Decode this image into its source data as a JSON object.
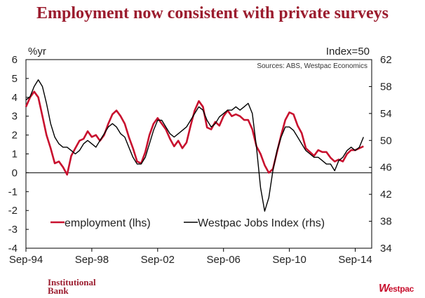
{
  "header": {
    "title": "Employment now consistent with private surveys"
  },
  "footer": {
    "brand_line1": "Institutional",
    "brand_line2": "Bank",
    "logo_text": "estpac",
    "logo_mark": "W"
  },
  "colors": {
    "title": "#9b1c2e",
    "employment": "#c8102e",
    "jobs_index": "#000000",
    "axis": "#000000"
  },
  "chart_data": {
    "type": "line",
    "left_unit": "%yr",
    "right_unit": "Index=50",
    "source": "Sources: ABS, Westpac Economics",
    "x_ticks": [
      "Sep-94",
      "Sep-98",
      "Sep-02",
      "Sep-06",
      "Sep-10",
      "Sep-14"
    ],
    "x_range": [
      "Sep-94",
      "Sep-15"
    ],
    "y_left": {
      "range": [
        -4,
        6
      ],
      "ticks": [
        "6",
        "5",
        "4",
        "3",
        "2",
        "1",
        "0",
        "-1",
        "-2",
        "-3",
        "-4"
      ]
    },
    "y_right": {
      "range": [
        34,
        62
      ],
      "ticks": [
        "62",
        "58",
        "54",
        "50",
        "46",
        "42",
        "38",
        "34"
      ]
    },
    "series": [
      {
        "name": "employment (lhs)",
        "axis": "left",
        "color": "#c8102e",
        "points": [
          [
            "Sep-94",
            3.5
          ],
          [
            "Dec-94",
            4.0
          ],
          [
            "Mar-95",
            4.3
          ],
          [
            "Jun-95",
            4.0
          ],
          [
            "Sep-95",
            3.0
          ],
          [
            "Dec-95",
            2.0
          ],
          [
            "Mar-96",
            1.3
          ],
          [
            "Jun-96",
            0.5
          ],
          [
            "Sep-96",
            0.6
          ],
          [
            "Dec-96",
            0.3
          ],
          [
            "Mar-97",
            -0.1
          ],
          [
            "Jun-97",
            0.9
          ],
          [
            "Sep-97",
            1.3
          ],
          [
            "Dec-97",
            1.7
          ],
          [
            "Mar-98",
            1.8
          ],
          [
            "Jun-98",
            2.2
          ],
          [
            "Sep-98",
            1.9
          ],
          [
            "Dec-98",
            2.0
          ],
          [
            "Mar-99",
            1.7
          ],
          [
            "Jun-99",
            2.0
          ],
          [
            "Sep-99",
            2.6
          ],
          [
            "Dec-99",
            3.1
          ],
          [
            "Mar-00",
            3.3
          ],
          [
            "Jun-00",
            3.0
          ],
          [
            "Sep-00",
            2.6
          ],
          [
            "Dec-00",
            1.9
          ],
          [
            "Mar-01",
            1.3
          ],
          [
            "Jun-01",
            0.6
          ],
          [
            "Sep-01",
            0.5
          ],
          [
            "Dec-01",
            1.1
          ],
          [
            "Mar-02",
            2.0
          ],
          [
            "Jun-02",
            2.6
          ],
          [
            "Sep-02",
            2.9
          ],
          [
            "Dec-02",
            2.6
          ],
          [
            "Mar-03",
            2.3
          ],
          [
            "Jun-03",
            1.8
          ],
          [
            "Sep-03",
            1.4
          ],
          [
            "Dec-03",
            1.7
          ],
          [
            "Mar-04",
            1.3
          ],
          [
            "Jun-04",
            1.6
          ],
          [
            "Sep-04",
            2.5
          ],
          [
            "Dec-04",
            3.3
          ],
          [
            "Mar-05",
            3.8
          ],
          [
            "Jun-05",
            3.5
          ],
          [
            "Sep-05",
            2.4
          ],
          [
            "Dec-05",
            2.3
          ],
          [
            "Mar-06",
            2.7
          ],
          [
            "Jun-06",
            2.5
          ],
          [
            "Sep-06",
            3.0
          ],
          [
            "Dec-06",
            3.3
          ],
          [
            "Mar-07",
            3.0
          ],
          [
            "Jun-07",
            3.1
          ],
          [
            "Sep-07",
            3.0
          ],
          [
            "Dec-07",
            2.8
          ],
          [
            "Mar-08",
            2.8
          ],
          [
            "Jun-08",
            2.3
          ],
          [
            "Sep-08",
            1.4
          ],
          [
            "Dec-08",
            1.0
          ],
          [
            "Mar-09",
            0.4
          ],
          [
            "Jun-09",
            0.0
          ],
          [
            "Sep-09",
            0.2
          ],
          [
            "Dec-09",
            1.1
          ],
          [
            "Mar-10",
            2.0
          ],
          [
            "Jun-10",
            2.8
          ],
          [
            "Sep-10",
            3.2
          ],
          [
            "Dec-10",
            3.1
          ],
          [
            "Mar-11",
            2.5
          ],
          [
            "Jun-11",
            2.1
          ],
          [
            "Sep-11",
            1.3
          ],
          [
            "Dec-11",
            1.1
          ],
          [
            "Mar-12",
            0.9
          ],
          [
            "Jun-12",
            1.2
          ],
          [
            "Sep-12",
            1.1
          ],
          [
            "Dec-12",
            1.1
          ],
          [
            "Mar-13",
            0.8
          ],
          [
            "Jun-13",
            0.6
          ],
          [
            "Sep-13",
            0.7
          ],
          [
            "Dec-13",
            0.6
          ],
          [
            "Mar-14",
            1.0
          ],
          [
            "Jun-14",
            1.2
          ],
          [
            "Sep-14",
            1.2
          ],
          [
            "Dec-14",
            1.3
          ],
          [
            "Mar-15",
            1.4
          ]
        ]
      },
      {
        "name": "Westpac Jobs Index  (rhs)",
        "axis": "right",
        "color": "#000000",
        "points": [
          [
            "Sep-94",
            56.0
          ],
          [
            "Dec-94",
            56.5
          ],
          [
            "Mar-95",
            58.0
          ],
          [
            "Jun-95",
            59.0
          ],
          [
            "Sep-95",
            58.0
          ],
          [
            "Dec-95",
            55.5
          ],
          [
            "Mar-96",
            52.5
          ],
          [
            "Jun-96",
            50.5
          ],
          [
            "Sep-96",
            49.5
          ],
          [
            "Dec-96",
            49.0
          ],
          [
            "Mar-97",
            49.0
          ],
          [
            "Jun-97",
            48.5
          ],
          [
            "Sep-97",
            48.0
          ],
          [
            "Dec-97",
            48.5
          ],
          [
            "Mar-98",
            49.5
          ],
          [
            "Jun-98",
            50.0
          ],
          [
            "Sep-98",
            49.5
          ],
          [
            "Dec-98",
            49.0
          ],
          [
            "Mar-99",
            50.0
          ],
          [
            "Jun-99",
            51.0
          ],
          [
            "Sep-99",
            52.0
          ],
          [
            "Dec-99",
            52.5
          ],
          [
            "Mar-00",
            52.0
          ],
          [
            "Jun-00",
            51.0
          ],
          [
            "Sep-00",
            50.5
          ],
          [
            "Dec-00",
            49.0
          ],
          [
            "Mar-01",
            47.5
          ],
          [
            "Jun-01",
            46.5
          ],
          [
            "Sep-01",
            46.5
          ],
          [
            "Dec-01",
            47.5
          ],
          [
            "Mar-02",
            49.5
          ],
          [
            "Jun-02",
            51.5
          ],
          [
            "Sep-02",
            53.0
          ],
          [
            "Dec-02",
            53.0
          ],
          [
            "Mar-03",
            52.0
          ],
          [
            "Jun-03",
            51.0
          ],
          [
            "Sep-03",
            50.5
          ],
          [
            "Dec-03",
            51.0
          ],
          [
            "Mar-04",
            51.5
          ],
          [
            "Jun-04",
            52.0
          ],
          [
            "Sep-04",
            53.0
          ],
          [
            "Dec-04",
            54.0
          ],
          [
            "Mar-05",
            55.0
          ],
          [
            "Jun-05",
            54.5
          ],
          [
            "Sep-05",
            53.0
          ],
          [
            "Dec-05",
            52.0
          ],
          [
            "Mar-06",
            52.5
          ],
          [
            "Jun-06",
            53.5
          ],
          [
            "Sep-06",
            54.0
          ],
          [
            "Dec-06",
            54.5
          ],
          [
            "Mar-07",
            54.5
          ],
          [
            "Jun-07",
            55.0
          ],
          [
            "Sep-07",
            54.5
          ],
          [
            "Dec-07",
            55.0
          ],
          [
            "Mar-08",
            55.5
          ],
          [
            "Jun-08",
            54.0
          ],
          [
            "Sep-08",
            49.0
          ],
          [
            "Dec-08",
            43.0
          ],
          [
            "Mar-09",
            39.5
          ],
          [
            "Jun-09",
            41.5
          ],
          [
            "Sep-09",
            45.5
          ],
          [
            "Dec-09",
            48.5
          ],
          [
            "Mar-10",
            50.5
          ],
          [
            "Jun-10",
            52.0
          ],
          [
            "Sep-10",
            52.0
          ],
          [
            "Dec-10",
            51.5
          ],
          [
            "Mar-11",
            50.5
          ],
          [
            "Jun-11",
            49.5
          ],
          [
            "Sep-11",
            48.5
          ],
          [
            "Dec-11",
            48.0
          ],
          [
            "Mar-12",
            47.5
          ],
          [
            "Jun-12",
            47.5
          ],
          [
            "Sep-12",
            47.0
          ],
          [
            "Dec-12",
            46.5
          ],
          [
            "Mar-13",
            46.5
          ],
          [
            "Jun-13",
            45.5
          ],
          [
            "Sep-13",
            47.0
          ],
          [
            "Dec-13",
            47.5
          ],
          [
            "Mar-14",
            48.5
          ],
          [
            "Jun-14",
            49.0
          ],
          [
            "Sep-14",
            48.5
          ],
          [
            "Dec-14",
            49.0
          ],
          [
            "Mar-15",
            50.5
          ]
        ]
      }
    ],
    "legend": {
      "position": "bottom-center",
      "items": [
        "employment (lhs)",
        "Westpac Jobs Index  (rhs)"
      ]
    },
    "zero_line": true,
    "grid": false
  }
}
